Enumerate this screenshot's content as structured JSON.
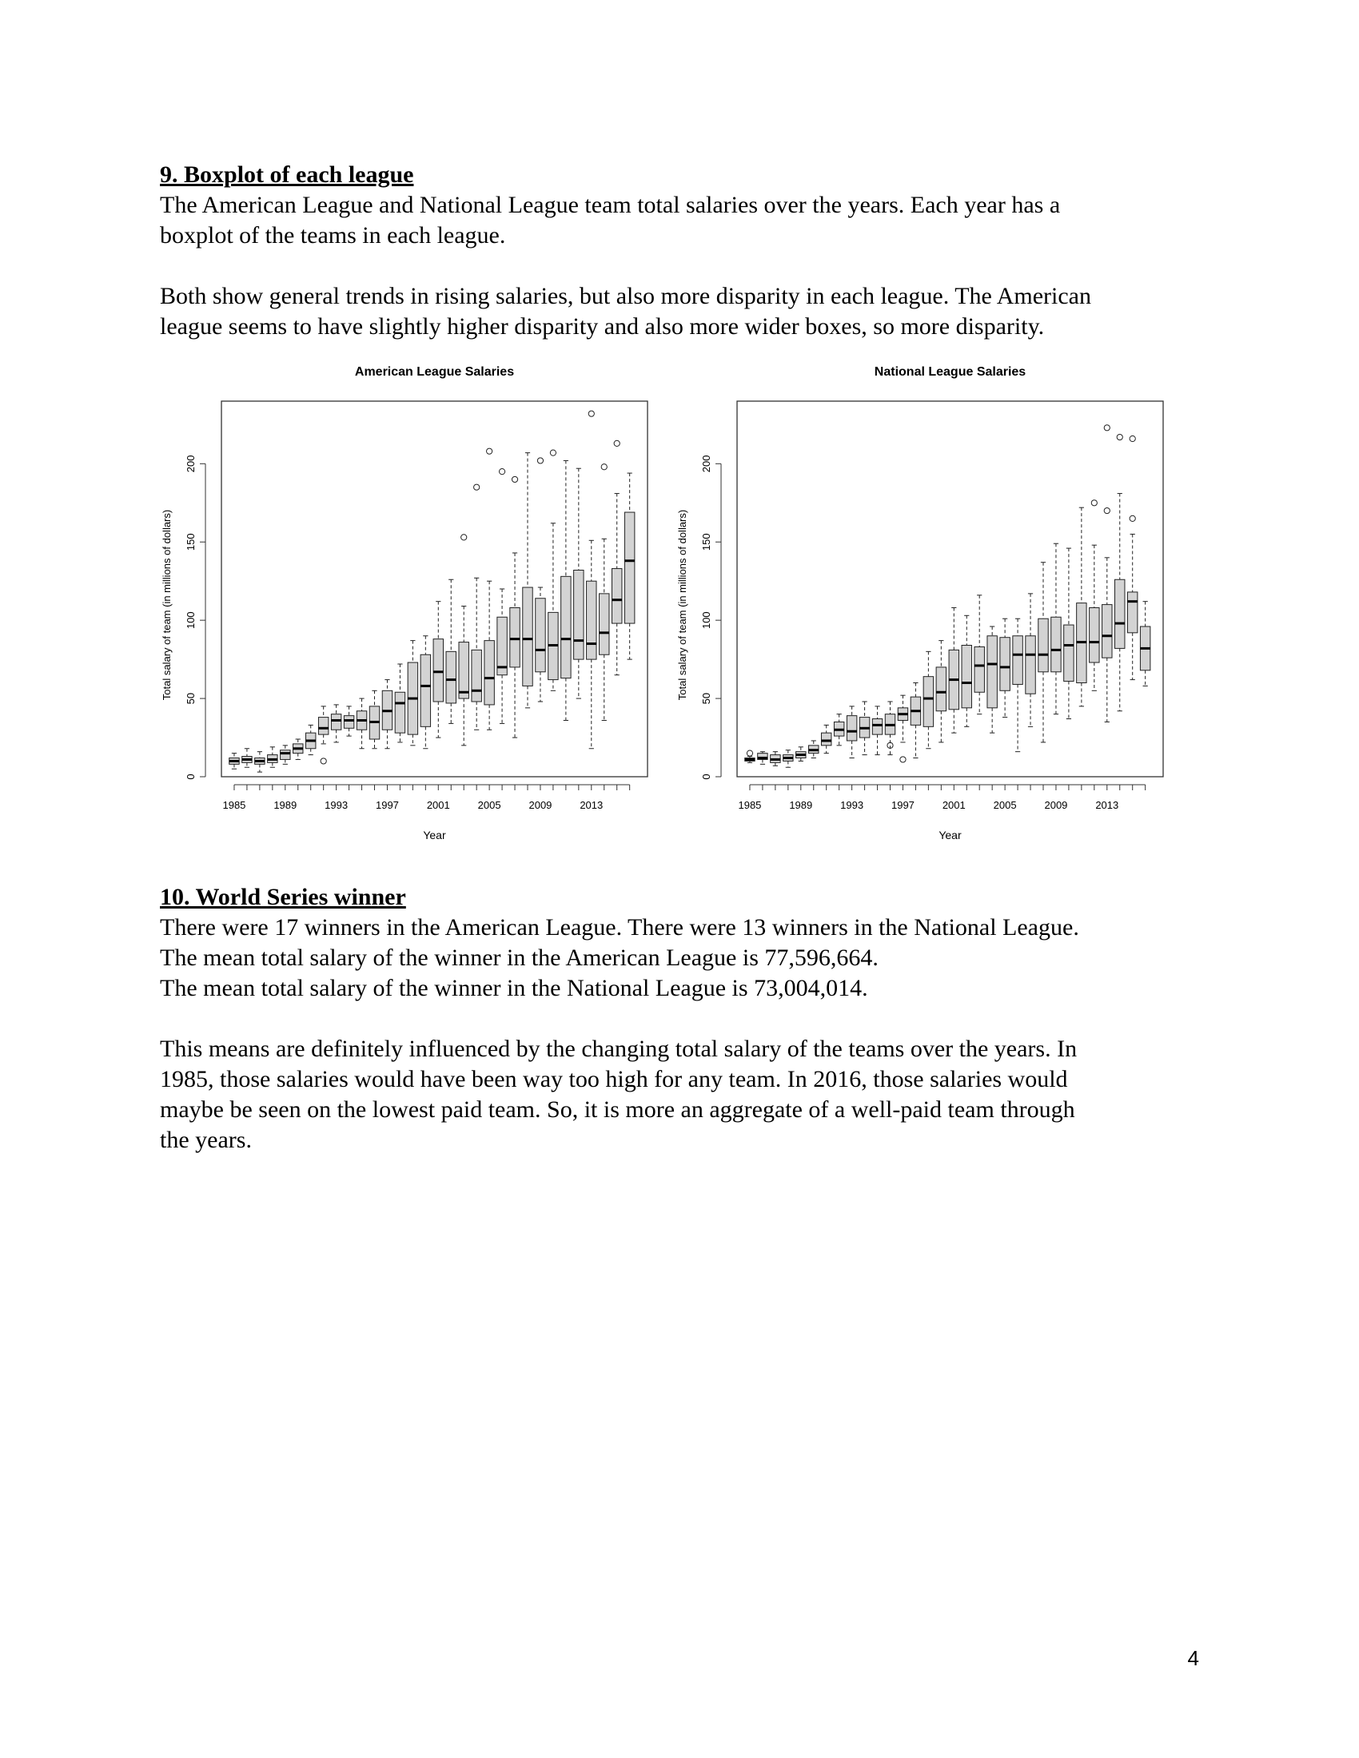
{
  "section9": {
    "heading": "9. Boxplot of each league",
    "p1_line1": "The American League and National League team total salaries over the years. Each year has a",
    "p1_line2": "boxplot of the  teams in each league.",
    "p2_line1": "Both show general trends in rising salaries, but also more disparity in each league. The American",
    "p2_line2": "league seems to have slightly higher disparity and also more wider boxes, so more disparity."
  },
  "section10": {
    "heading": "10. World Series winner",
    "line1": "There were 17 winners in the American League. There were 13 winners in the National League.",
    "line2": "The mean total salary of the winner in the American League is 77,596,664.",
    "line3": "The mean total salary of the winner in the National League is 73,004,014.",
    "p2_line1": "This means are definitely influenced by the changing total salary of the teams over the years. In",
    "p2_line2": "1985, those salaries would have been way too high for any team. In 2016, those salaries would",
    "p2_line3": "maybe be seen on the lowest paid team. So, it is more an aggregate of a well-paid team through",
    "p2_line4": "the years."
  },
  "page_number": "4",
  "chart_data": [
    {
      "type": "boxplot",
      "title": "American League Salaries",
      "xlabel": "Year",
      "ylabel": "Total salary of team (in millions of dollars)",
      "ylim": [
        0,
        240
      ],
      "yticks": [
        0,
        50,
        100,
        150,
        200
      ],
      "x_tick_labels": [
        "1985",
        "1989",
        "1993",
        "1997",
        "2001",
        "2005",
        "2009",
        "2013"
      ],
      "grid": false,
      "categories": [
        "1985",
        "1986",
        "1987",
        "1988",
        "1989",
        "1990",
        "1991",
        "1992",
        "1993",
        "1994",
        "1995",
        "1996",
        "1997",
        "1998",
        "1999",
        "2000",
        "2001",
        "2002",
        "2003",
        "2004",
        "2005",
        "2006",
        "2007",
        "2008",
        "2009",
        "2010",
        "2011",
        "2012",
        "2013",
        "2014",
        "2015",
        "2016"
      ],
      "boxes": [
        {
          "min": 5,
          "q1": 8,
          "median": 10,
          "q3": 12,
          "max": 15,
          "outliers": []
        },
        {
          "min": 6,
          "q1": 9,
          "median": 11,
          "q3": 13,
          "max": 18,
          "outliers": []
        },
        {
          "min": 3,
          "q1": 8,
          "median": 10,
          "q3": 12,
          "max": 16,
          "outliers": []
        },
        {
          "min": 6,
          "q1": 9,
          "median": 11,
          "q3": 14,
          "max": 19,
          "outliers": []
        },
        {
          "min": 8,
          "q1": 11,
          "median": 15,
          "q3": 17,
          "max": 20,
          "outliers": []
        },
        {
          "min": 11,
          "q1": 15,
          "median": 18,
          "q3": 21,
          "max": 24,
          "outliers": []
        },
        {
          "min": 14,
          "q1": 18,
          "median": 23,
          "q3": 28,
          "max": 33,
          "outliers": []
        },
        {
          "min": 21,
          "q1": 27,
          "median": 31,
          "q3": 38,
          "max": 45,
          "outliers": [
            10
          ]
        },
        {
          "min": 22,
          "q1": 30,
          "median": 36,
          "q3": 40,
          "max": 46,
          "outliers": []
        },
        {
          "min": 26,
          "q1": 31,
          "median": 36,
          "q3": 39,
          "max": 45,
          "outliers": []
        },
        {
          "min": 18,
          "q1": 30,
          "median": 36,
          "q3": 42,
          "max": 50,
          "outliers": []
        },
        {
          "min": 18,
          "q1": 24,
          "median": 35,
          "q3": 45,
          "max": 55,
          "outliers": []
        },
        {
          "min": 18,
          "q1": 30,
          "median": 42,
          "q3": 55,
          "max": 62,
          "outliers": []
        },
        {
          "min": 22,
          "q1": 28,
          "median": 47,
          "q3": 54,
          "max": 72,
          "outliers": []
        },
        {
          "min": 20,
          "q1": 27,
          "median": 50,
          "q3": 73,
          "max": 87,
          "outliers": []
        },
        {
          "min": 18,
          "q1": 32,
          "median": 58,
          "q3": 78,
          "max": 90,
          "outliers": []
        },
        {
          "min": 25,
          "q1": 48,
          "median": 67,
          "q3": 88,
          "max": 112,
          "outliers": []
        },
        {
          "min": 34,
          "q1": 47,
          "median": 62,
          "q3": 80,
          "max": 126,
          "outliers": []
        },
        {
          "min": 20,
          "q1": 50,
          "median": 54,
          "q3": 86,
          "max": 109,
          "outliers": [
            153
          ]
        },
        {
          "min": 30,
          "q1": 48,
          "median": 55,
          "q3": 81,
          "max": 127,
          "outliers": [
            185
          ]
        },
        {
          "min": 30,
          "q1": 46,
          "median": 63,
          "q3": 87,
          "max": 125,
          "outliers": [
            208
          ]
        },
        {
          "min": 34,
          "q1": 65,
          "median": 70,
          "q3": 102,
          "max": 120,
          "outliers": [
            195
          ]
        },
        {
          "min": 25,
          "q1": 70,
          "median": 88,
          "q3": 108,
          "max": 143,
          "outliers": [
            190
          ]
        },
        {
          "min": 44,
          "q1": 58,
          "median": 88,
          "q3": 121,
          "max": 207,
          "outliers": []
        },
        {
          "min": 48,
          "q1": 67,
          "median": 81,
          "q3": 114,
          "max": 121,
          "outliers": [
            202
          ]
        },
        {
          "min": 55,
          "q1": 62,
          "median": 84,
          "q3": 105,
          "max": 162,
          "outliers": [
            207
          ]
        },
        {
          "min": 36,
          "q1": 63,
          "median": 88,
          "q3": 128,
          "max": 202,
          "outliers": []
        },
        {
          "min": 50,
          "q1": 75,
          "median": 87,
          "q3": 132,
          "max": 197,
          "outliers": []
        },
        {
          "min": 18,
          "q1": 75,
          "median": 85,
          "q3": 125,
          "max": 151,
          "outliers": [
            232
          ]
        },
        {
          "min": 36,
          "q1": 78,
          "median": 92,
          "q3": 117,
          "max": 152,
          "outliers": [
            198
          ]
        },
        {
          "min": 65,
          "q1": 98,
          "median": 113,
          "q3": 133,
          "max": 181,
          "outliers": [
            213
          ]
        },
        {
          "min": 75,
          "q1": 98,
          "median": 138,
          "q3": 169,
          "max": 194,
          "outliers": []
        }
      ]
    },
    {
      "type": "boxplot",
      "title": "National League Salaries",
      "xlabel": "Year",
      "ylabel": "Total salary of team (in millions of dollars)",
      "ylim": [
        0,
        240
      ],
      "yticks": [
        0,
        50,
        100,
        150,
        200
      ],
      "x_tick_labels": [
        "1985",
        "1989",
        "1993",
        "1997",
        "2001",
        "2005",
        "2009",
        "2013"
      ],
      "grid": false,
      "categories": [
        "1985",
        "1986",
        "1987",
        "1988",
        "1989",
        "1990",
        "1991",
        "1992",
        "1993",
        "1994",
        "1995",
        "1996",
        "1997",
        "1998",
        "1999",
        "2000",
        "2001",
        "2002",
        "2003",
        "2004",
        "2005",
        "2006",
        "2007",
        "2008",
        "2009",
        "2010",
        "2011",
        "2012",
        "2013",
        "2014",
        "2015",
        "2016"
      ],
      "boxes": [
        {
          "min": 9,
          "q1": 10,
          "median": 11,
          "q3": 12,
          "max": 13,
          "outliers": [
            15
          ]
        },
        {
          "min": 8,
          "q1": 11,
          "median": 12,
          "q3": 15,
          "max": 16,
          "outliers": []
        },
        {
          "min": 7,
          "q1": 9,
          "median": 11,
          "q3": 14,
          "max": 16,
          "outliers": []
        },
        {
          "min": 6,
          "q1": 10,
          "median": 12,
          "q3": 14,
          "max": 17,
          "outliers": []
        },
        {
          "min": 10,
          "q1": 12,
          "median": 14,
          "q3": 16,
          "max": 19,
          "outliers": []
        },
        {
          "min": 12,
          "q1": 15,
          "median": 17,
          "q3": 20,
          "max": 23,
          "outliers": []
        },
        {
          "min": 15,
          "q1": 20,
          "median": 23,
          "q3": 28,
          "max": 33,
          "outliers": []
        },
        {
          "min": 20,
          "q1": 26,
          "median": 30,
          "q3": 35,
          "max": 40,
          "outliers": []
        },
        {
          "min": 12,
          "q1": 23,
          "median": 29,
          "q3": 39,
          "max": 45,
          "outliers": []
        },
        {
          "min": 14,
          "q1": 25,
          "median": 31,
          "q3": 38,
          "max": 48,
          "outliers": []
        },
        {
          "min": 14,
          "q1": 27,
          "median": 33,
          "q3": 37,
          "max": 45,
          "outliers": []
        },
        {
          "min": 14,
          "q1": 27,
          "median": 33,
          "q3": 40,
          "max": 48,
          "outliers": [
            20
          ]
        },
        {
          "min": 22,
          "q1": 36,
          "median": 40,
          "q3": 44,
          "max": 52,
          "outliers": [
            11
          ]
        },
        {
          "min": 12,
          "q1": 33,
          "median": 42,
          "q3": 51,
          "max": 60,
          "outliers": []
        },
        {
          "min": 18,
          "q1": 32,
          "median": 50,
          "q3": 64,
          "max": 80,
          "outliers": []
        },
        {
          "min": 22,
          "q1": 42,
          "median": 54,
          "q3": 70,
          "max": 87,
          "outliers": []
        },
        {
          "min": 28,
          "q1": 43,
          "median": 62,
          "q3": 81,
          "max": 108,
          "outliers": []
        },
        {
          "min": 32,
          "q1": 44,
          "median": 60,
          "q3": 84,
          "max": 103,
          "outliers": []
        },
        {
          "min": 40,
          "q1": 54,
          "median": 71,
          "q3": 83,
          "max": 116,
          "outliers": []
        },
        {
          "min": 28,
          "q1": 44,
          "median": 72,
          "q3": 90,
          "max": 96,
          "outliers": []
        },
        {
          "min": 38,
          "q1": 55,
          "median": 70,
          "q3": 89,
          "max": 101,
          "outliers": []
        },
        {
          "min": 16,
          "q1": 59,
          "median": 78,
          "q3": 90,
          "max": 101,
          "outliers": []
        },
        {
          "min": 32,
          "q1": 53,
          "median": 78,
          "q3": 90,
          "max": 117,
          "outliers": []
        },
        {
          "min": 22,
          "q1": 67,
          "median": 78,
          "q3": 101,
          "max": 137,
          "outliers": []
        },
        {
          "min": 40,
          "q1": 67,
          "median": 81,
          "q3": 102,
          "max": 149,
          "outliers": []
        },
        {
          "min": 37,
          "q1": 61,
          "median": 84,
          "q3": 97,
          "max": 146,
          "outliers": []
        },
        {
          "min": 45,
          "q1": 60,
          "median": 86,
          "q3": 111,
          "max": 172,
          "outliers": []
        },
        {
          "min": 55,
          "q1": 73,
          "median": 86,
          "q3": 108,
          "max": 148,
          "outliers": [
            175
          ]
        },
        {
          "min": 35,
          "q1": 76,
          "median": 90,
          "q3": 110,
          "max": 140,
          "outliers": [
            170,
            223
          ]
        },
        {
          "min": 42,
          "q1": 82,
          "median": 98,
          "q3": 126,
          "max": 181,
          "outliers": [
            217
          ]
        },
        {
          "min": 62,
          "q1": 92,
          "median": 112,
          "q3": 118,
          "max": 155,
          "outliers": [
            165,
            216
          ]
        },
        {
          "min": 58,
          "q1": 68,
          "median": 82,
          "q3": 96,
          "max": 112,
          "outliers": []
        }
      ]
    }
  ]
}
